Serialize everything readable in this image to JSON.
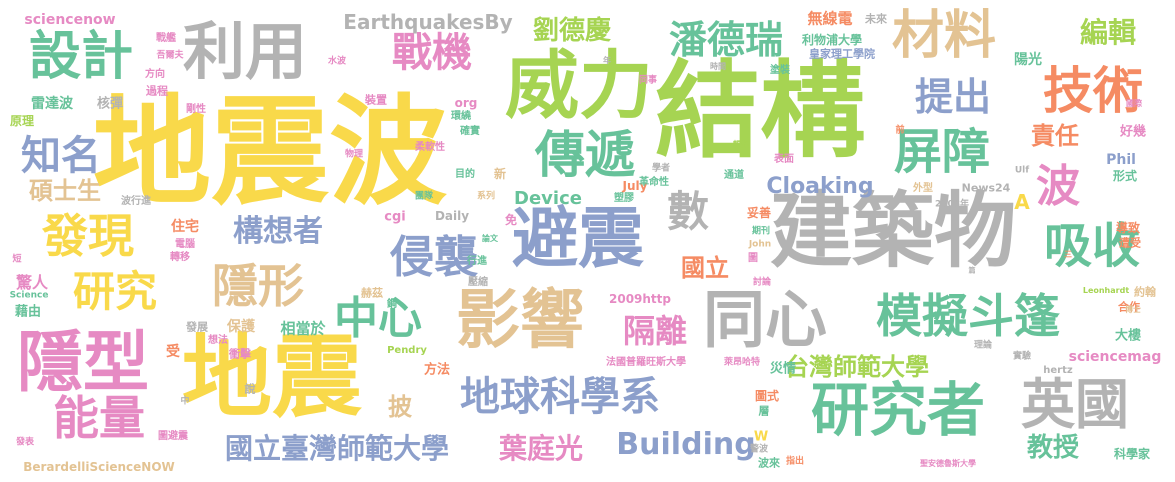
{
  "palette": {
    "yellow": "#f9d94a",
    "green": "#67c29a",
    "lime": "#a6d452",
    "pink": "#e68ac3",
    "blue": "#8c9fcb",
    "orange": "#f58b63",
    "tan": "#e3c393",
    "gray": "#b3b3b3"
  },
  "words": [
    {
      "text": "地震波",
      "color": "yellow"
    },
    {
      "text": "結構",
      "color": "lime"
    },
    {
      "text": "威力",
      "color": "lime"
    },
    {
      "text": "建築物",
      "color": "gray"
    },
    {
      "text": "地震",
      "color": "yellow"
    },
    {
      "text": "隱型",
      "color": "pink"
    },
    {
      "text": "避震",
      "color": "blue"
    },
    {
      "text": "影響",
      "color": "tan"
    },
    {
      "text": "同心",
      "color": "gray"
    },
    {
      "text": "利用",
      "color": "gray"
    },
    {
      "text": "設計",
      "color": "green"
    },
    {
      "text": "材料",
      "color": "tan"
    },
    {
      "text": "技術",
      "color": "orange"
    },
    {
      "text": "傳遞",
      "color": "green"
    },
    {
      "text": "屏障",
      "color": "green"
    },
    {
      "text": "吸收",
      "color": "green"
    },
    {
      "text": "研究者",
      "color": "green"
    },
    {
      "text": "英國",
      "color": "gray"
    },
    {
      "text": "模擬斗篷",
      "color": "green"
    },
    {
      "text": "侵襲",
      "color": "blue"
    },
    {
      "text": "中心",
      "color": "green"
    },
    {
      "text": "數",
      "color": "gray"
    },
    {
      "text": "隱形",
      "color": "tan"
    },
    {
      "text": "發現",
      "color": "yellow"
    },
    {
      "text": "研究",
      "color": "yellow"
    },
    {
      "text": "能量",
      "color": "pink"
    },
    {
      "text": "知名",
      "color": "blue"
    },
    {
      "text": "地球科學系",
      "color": "blue"
    },
    {
      "text": "戰機",
      "color": "pink"
    },
    {
      "text": "潘德瑞",
      "color": "green"
    },
    {
      "text": "提出",
      "color": "blue"
    },
    {
      "text": "波",
      "color": "pink"
    },
    {
      "text": "構想者",
      "color": "blue"
    },
    {
      "text": "隔離",
      "color": "pink"
    },
    {
      "text": "國立臺灣師範大學",
      "color": "blue"
    },
    {
      "text": "葉庭光",
      "color": "pink"
    },
    {
      "text": "Building",
      "color": "blue"
    },
    {
      "text": "台灣師範大學",
      "color": "lime"
    },
    {
      "text": "劉德慶",
      "color": "lime"
    },
    {
      "text": "編輯",
      "color": "lime"
    },
    {
      "text": "責任",
      "color": "orange"
    },
    {
      "text": "碩士生",
      "color": "tan"
    },
    {
      "text": "Cloaking",
      "color": "blue"
    },
    {
      "text": "Device",
      "color": "green"
    },
    {
      "text": "EarthquakesBy",
      "color": "gray"
    },
    {
      "text": "國立",
      "color": "orange"
    },
    {
      "text": "教授",
      "color": "green"
    },
    {
      "text": "披",
      "color": "tan"
    },
    {
      "text": "sciencenow",
      "color": "pink"
    },
    {
      "text": "無線電",
      "color": "orange"
    },
    {
      "text": "未來",
      "color": "gray"
    },
    {
      "text": "利物浦大學",
      "color": "green"
    },
    {
      "text": "皇家理工學院",
      "color": "blue"
    },
    {
      "text": "陽光",
      "color": "green"
    },
    {
      "text": "戰艦",
      "color": "pink"
    },
    {
      "text": "吾爾夫",
      "color": "pink"
    },
    {
      "text": "方向",
      "color": "pink"
    },
    {
      "text": "過程",
      "color": "pink"
    },
    {
      "text": "雷達波",
      "color": "green"
    },
    {
      "text": "核彈",
      "color": "gray"
    },
    {
      "text": "原理",
      "color": "lime"
    },
    {
      "text": "波行進",
      "color": "gray"
    },
    {
      "text": "住宅",
      "color": "orange"
    },
    {
      "text": "電腦",
      "color": "pink"
    },
    {
      "text": "轉移",
      "color": "pink"
    },
    {
      "text": "驚人",
      "color": "pink"
    },
    {
      "text": "Science",
      "color": "green"
    },
    {
      "text": "藉由",
      "color": "green"
    },
    {
      "text": "發展",
      "color": "gray"
    },
    {
      "text": "保護",
      "color": "tan"
    },
    {
      "text": "相當於",
      "color": "green"
    },
    {
      "text": "想法",
      "color": "pink"
    },
    {
      "text": "衝擊",
      "color": "pink"
    },
    {
      "text": "受",
      "color": "orange"
    },
    {
      "text": "中",
      "color": "gray"
    },
    {
      "text": "說",
      "color": "gray"
    },
    {
      "text": "發表",
      "color": "pink"
    },
    {
      "text": "圖避震",
      "color": "pink"
    },
    {
      "text": "BerardelliScienceNOW",
      "color": "tan"
    },
    {
      "text": "Pendry",
      "color": "lime"
    },
    {
      "text": "方法",
      "color": "orange"
    },
    {
      "text": "法國普羅旺斯大學",
      "color": "pink"
    },
    {
      "text": "萊昂哈特",
      "color": "pink"
    },
    {
      "text": "災情",
      "color": "green"
    },
    {
      "text": "sciencemag",
      "color": "pink"
    },
    {
      "text": "hertz",
      "color": "gray"
    },
    {
      "text": "大樓",
      "color": "green"
    },
    {
      "text": "合作",
      "color": "orange"
    },
    {
      "text": "約翰",
      "color": "tan"
    },
    {
      "text": "Leonhardt",
      "color": "lime"
    },
    {
      "text": "理論",
      "color": "gray"
    },
    {
      "text": "實驗",
      "color": "gray"
    },
    {
      "text": "科學家",
      "color": "green"
    },
    {
      "text": "聖安德魯斯大學",
      "color": "pink"
    },
    {
      "text": "News24",
      "color": "gray"
    },
    {
      "text": "導致",
      "color": "orange"
    },
    {
      "text": "遭受",
      "color": "orange"
    },
    {
      "text": "博士",
      "color": "tan"
    },
    {
      "text": "Phil",
      "color": "blue"
    },
    {
      "text": "形式",
      "color": "green"
    },
    {
      "text": "好幾",
      "color": "pink"
    },
    {
      "text": "July",
      "color": "orange"
    },
    {
      "text": "2009http",
      "color": "pink"
    },
    {
      "text": "org",
      "color": "pink"
    },
    {
      "text": "cgi",
      "color": "pink"
    },
    {
      "text": "Daily",
      "color": "gray"
    },
    {
      "text": "團隊",
      "color": "green"
    },
    {
      "text": "目的",
      "color": "green"
    },
    {
      "text": "系列",
      "color": "tan"
    },
    {
      "text": "免",
      "color": "pink"
    },
    {
      "text": "新",
      "color": "tan"
    },
    {
      "text": "柔軟性",
      "color": "pink"
    },
    {
      "text": "環繞",
      "color": "green"
    },
    {
      "text": "確實",
      "color": "green"
    },
    {
      "text": "剛性",
      "color": "pink"
    },
    {
      "text": "裝置",
      "color": "pink"
    },
    {
      "text": "水波",
      "color": "pink"
    },
    {
      "text": "物理",
      "color": "pink"
    },
    {
      "text": "赫茲",
      "color": "tan"
    },
    {
      "text": "鋼",
      "color": "green"
    },
    {
      "text": "壓縮",
      "color": "gray"
    },
    {
      "text": "行進",
      "color": "green"
    },
    {
      "text": "論文",
      "color": "green"
    },
    {
      "text": "塑膠",
      "color": "green"
    },
    {
      "text": "革命性",
      "color": "green"
    },
    {
      "text": "學者",
      "color": "gray"
    },
    {
      "text": "妥善",
      "color": "orange"
    },
    {
      "text": "期刊",
      "color": "green"
    },
    {
      "text": "外型",
      "color": "tan"
    },
    {
      "text": "2008年",
      "color": "gray"
    },
    {
      "text": "John",
      "color": "tan"
    },
    {
      "text": "圖",
      "color": "pink"
    },
    {
      "text": "討論",
      "color": "pink"
    },
    {
      "text": "通道",
      "color": "green"
    },
    {
      "text": "表面",
      "color": "pink"
    },
    {
      "text": "輻疑",
      "color": "lime"
    },
    {
      "text": "時間",
      "color": "gray"
    },
    {
      "text": "塗裝",
      "color": "green"
    },
    {
      "text": "同事",
      "color": "pink"
    },
    {
      "text": "年",
      "color": "gray"
    },
    {
      "text": "前",
      "color": "orange"
    },
    {
      "text": "國際",
      "color": "pink"
    },
    {
      "text": "三",
      "color": "orange"
    },
    {
      "text": "篇",
      "color": "gray"
    },
    {
      "text": "Ulf",
      "color": "gray"
    },
    {
      "text": "A",
      "color": "yellow"
    },
    {
      "text": "指出",
      "color": "orange"
    },
    {
      "text": "波來",
      "color": "green"
    },
    {
      "text": "警波",
      "color": "gray"
    },
    {
      "text": "W",
      "color": "yellow"
    },
    {
      "text": "層",
      "color": "green"
    },
    {
      "text": "圖式",
      "color": "orange"
    },
    {
      "text": "短",
      "color": "pink"
    }
  ]
}
